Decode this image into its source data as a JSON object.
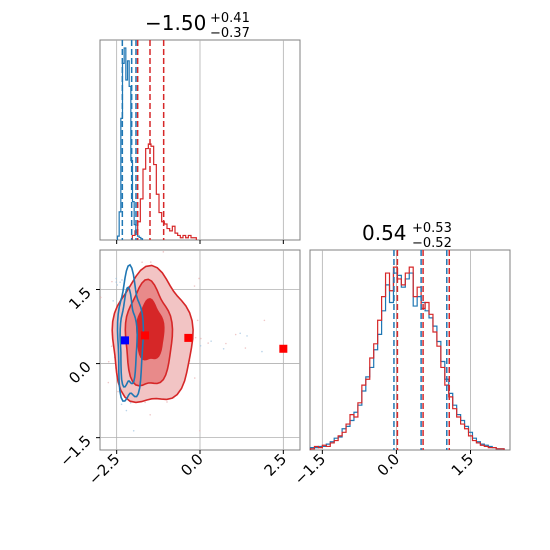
{
  "chart_data": {
    "type": "corner",
    "colors": {
      "red": "#d62728",
      "blue": "#1f77b4",
      "marker_blue": "#0000ff",
      "marker_red": "#ff0000",
      "grid": "#b0b0b0"
    },
    "panels": {
      "hist_x": {
        "title_main": "−1.50",
        "title_sup": "+0.41",
        "title_sub": "−0.37",
        "xlim": [
          -3.0,
          3.0
        ],
        "quantiles": {
          "red": [
            -1.87,
            -1.5,
            -1.09
          ],
          "blue": [
            -2.33,
            -2.05,
            -1.92
          ]
        },
        "red_x": [
          -1.99,
          -1.91,
          -1.83,
          -1.75,
          -1.67,
          -1.59,
          -1.51,
          -1.43,
          -1.35,
          -1.27,
          -1.19,
          -1.11,
          -1.03,
          -0.95,
          -0.87,
          -0.79,
          -0.71,
          -0.63,
          -0.55,
          -0.47,
          -0.39,
          -0.31,
          -0.23,
          -0.15
        ],
        "red_counts": [
          2,
          4,
          8,
          18,
          31,
          40,
          42,
          41,
          33,
          20,
          12,
          8,
          7,
          5,
          4,
          6,
          3,
          2,
          1,
          2,
          1,
          2,
          1,
          1
        ],
        "blue_x": [
          -2.45,
          -2.4,
          -2.35,
          -2.3,
          -2.25,
          -2.2,
          -2.15,
          -2.1,
          -2.05,
          -2.0,
          -1.95,
          -1.9,
          -1.85,
          -1.8,
          -1.75
        ],
        "blue_counts": [
          3,
          22,
          95,
          138,
          150,
          125,
          140,
          120,
          62,
          30,
          12,
          6,
          3,
          2,
          1
        ]
      },
      "hist_y": {
        "title_main": "0.54",
        "title_sup": "+0.53",
        "title_sub": "−0.52",
        "xlim": [
          -1.75,
          2.3
        ],
        "quantiles": {
          "red": [
            0.02,
            0.54,
            1.07
          ],
          "blue": [
            -0.05,
            0.5,
            1.02
          ]
        },
        "bins_x": [
          -1.7,
          -1.62,
          -1.54,
          -1.46,
          -1.38,
          -1.3,
          -1.22,
          -1.14,
          -1.06,
          -0.98,
          -0.9,
          -0.82,
          -0.74,
          -0.66,
          -0.58,
          -0.5,
          -0.42,
          -0.34,
          -0.26,
          -0.18,
          -0.1,
          -0.02,
          0.06,
          0.14,
          0.22,
          0.3,
          0.38,
          0.46,
          0.54,
          0.62,
          0.7,
          0.78,
          0.86,
          0.94,
          1.02,
          1.1,
          1.18,
          1.26,
          1.34,
          1.42,
          1.5,
          1.58,
          1.66,
          1.74,
          1.82,
          1.9,
          1.98,
          2.06,
          2.14
        ],
        "red_counts": [
          1,
          3,
          2,
          4,
          3,
          6,
          8,
          12,
          15,
          22,
          30,
          28,
          40,
          55,
          60,
          78,
          90,
          110,
          130,
          150,
          135,
          155,
          145,
          140,
          150,
          155,
          130,
          138,
          120,
          125,
          115,
          100,
          88,
          70,
          55,
          45,
          35,
          28,
          22,
          18,
          12,
          8,
          6,
          4,
          3,
          2,
          2,
          1,
          1
        ],
        "blue_counts": [
          2,
          2,
          3,
          3,
          5,
          7,
          10,
          11,
          18,
          20,
          25,
          32,
          38,
          50,
          62,
          70,
          85,
          98,
          118,
          140,
          125,
          150,
          148,
          138,
          145,
          150,
          122,
          130,
          125,
          118,
          112,
          105,
          92,
          75,
          60,
          48,
          38,
          30,
          25,
          20,
          15,
          10,
          7,
          5,
          4,
          3,
          2,
          1,
          1
        ]
      },
      "scatter_2d": {
        "xlim": [
          -3.0,
          3.0
        ],
        "ylim": [
          -1.75,
          2.3
        ],
        "x_ticks": [
          -2.5,
          0.0,
          2.5
        ],
        "x_tick_labels": [
          "−2.5",
          "0.0",
          "2.5"
        ],
        "y_ticks": [
          -1.5,
          0.0,
          1.5
        ],
        "y_tick_labels": [
          "−1.5",
          "0.0",
          "1.5"
        ],
        "blue_markers": [
          {
            "x": -2.25,
            "y": 0.47
          }
        ],
        "red_markers": [
          {
            "x": -1.65,
            "y": 0.57
          },
          {
            "x": -0.35,
            "y": 0.52
          },
          {
            "x": 2.5,
            "y": 0.3
          }
        ],
        "red_contour_levels": [
          {
            "cx": -1.45,
            "cy": 0.5,
            "rx": 1.2,
            "ry": 1.35
          },
          {
            "cx": -1.55,
            "cy": 0.55,
            "rx": 0.7,
            "ry": 1.05
          },
          {
            "cx": -1.5,
            "cy": 0.65,
            "rx": 0.4,
            "ry": 0.6
          }
        ],
        "blue_contour_levels": [
          {
            "cx": -2.1,
            "cy": 0.5,
            "rx": 0.38,
            "ry": 1.3
          },
          {
            "cx": -2.15,
            "cy": 0.45,
            "rx": 0.25,
            "ry": 0.95
          }
        ]
      }
    },
    "x_ticks_hist_y": [
      -1.5,
      0.0,
      1.5
    ],
    "x_tick_labels_hist_y": [
      "−1.5",
      "0.0",
      "1.5"
    ]
  }
}
